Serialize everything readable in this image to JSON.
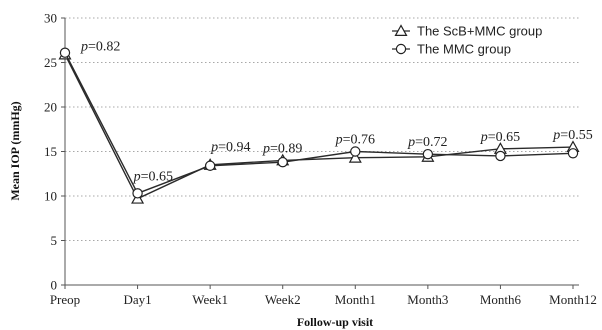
{
  "chart_data": {
    "type": "line",
    "xlabel": "Follow-up visit",
    "ylabel": "Mean IOP (mmHg)",
    "categories": [
      "Preop",
      "Day1",
      "Week1",
      "Week2",
      "Month1",
      "Month3",
      "Month6",
      "Month12"
    ],
    "ylim": [
      0,
      30
    ],
    "yticks": [
      0,
      5,
      10,
      15,
      20,
      25,
      30
    ],
    "grid": true,
    "legend_position": "top-right",
    "series": [
      {
        "name": "The ScB+MMC group",
        "marker": "triangle",
        "values": [
          25.9,
          9.7,
          13.5,
          14.0,
          14.3,
          14.4,
          15.3,
          15.5
        ]
      },
      {
        "name": "The MMC group",
        "marker": "circle",
        "values": [
          26.1,
          10.3,
          13.4,
          13.8,
          15.0,
          14.7,
          14.5,
          14.8
        ]
      }
    ],
    "annotations": [
      {
        "category": "Preop",
        "p_label": "p",
        "p_value": "=0.82"
      },
      {
        "category": "Day1",
        "p_label": "p",
        "p_value": "=0.65"
      },
      {
        "category": "Week1",
        "p_label": "p",
        "p_value": "=0.94"
      },
      {
        "category": "Week2",
        "p_label": "p",
        "p_value": "=0.89"
      },
      {
        "category": "Month1",
        "p_label": "p",
        "p_value": "=0.76"
      },
      {
        "category": "Month3",
        "p_label": "p",
        "p_value": "=0.72"
      },
      {
        "category": "Month6",
        "p_label": "p",
        "p_value": "=0.65"
      },
      {
        "category": "Month12",
        "p_label": "p",
        "p_value": "=0.55"
      }
    ]
  }
}
